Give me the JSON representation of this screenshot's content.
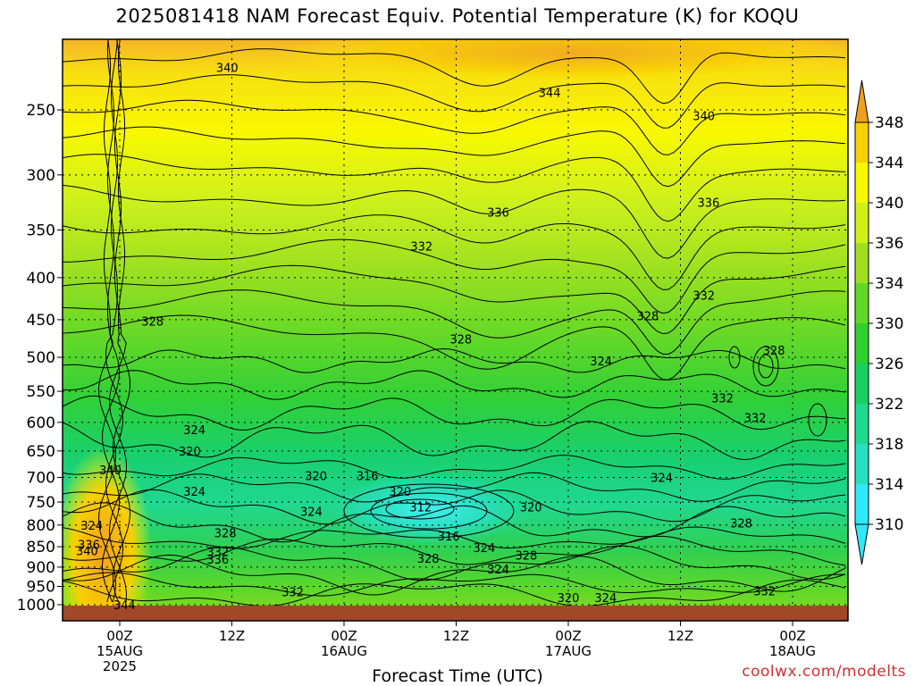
{
  "chart_data": {
    "type": "heatmap",
    "title": "2025081418 NAM Forecast Equiv. Potential Temperature (K) for KOQU",
    "xlabel": "Forecast Time (UTC)",
    "ylabel": "",
    "y_scale": "log",
    "y_reversed": true,
    "ylim": [
      1000,
      200
    ],
    "y_ticks": [
      250,
      300,
      350,
      400,
      450,
      500,
      550,
      600,
      650,
      700,
      750,
      800,
      850,
      900,
      950,
      1000
    ],
    "x_ticks": [
      {
        "line1": "00Z",
        "line2": "15AUG",
        "line3": "2025"
      },
      {
        "line1": "12Z",
        "line2": "",
        "line3": ""
      },
      {
        "line1": "00Z",
        "line2": "16AUG",
        "line3": ""
      },
      {
        "line1": "12Z",
        "line2": "",
        "line3": ""
      },
      {
        "line1": "00Z",
        "line2": "17AUG",
        "line3": ""
      },
      {
        "line1": "12Z",
        "line2": "",
        "line3": ""
      },
      {
        "line1": "00Z",
        "line2": "18AUG",
        "line3": ""
      }
    ],
    "colorbar": {
      "levels": [
        310,
        314,
        318,
        322,
        326,
        330,
        334,
        336,
        340,
        344,
        348
      ],
      "colors": [
        "#30e8f8",
        "#28e0c0",
        "#20d890",
        "#18d060",
        "#30d030",
        "#60d828",
        "#a0e020",
        "#d0f018",
        "#f8f800",
        "#f8d000",
        "#f0a020"
      ]
    },
    "grid": true,
    "contour_labels": [
      {
        "text": "340",
        "hour": -3.5,
        "p": 860
      },
      {
        "text": "336",
        "hour": -3.3,
        "p": 845
      },
      {
        "text": "324",
        "hour": -3.0,
        "p": 800
      },
      {
        "text": "340",
        "hour": -1.0,
        "p": 685
      },
      {
        "text": "344",
        "hour": 0.5,
        "p": 1000
      },
      {
        "text": "340",
        "hour": 11.5,
        "p": 222
      },
      {
        "text": "328",
        "hour": 3.5,
        "p": 452
      },
      {
        "text": "324",
        "hour": 8.0,
        "p": 612
      },
      {
        "text": "320",
        "hour": 7.5,
        "p": 650
      },
      {
        "text": "324",
        "hour": 8.0,
        "p": 728
      },
      {
        "text": "328",
        "hour": 11.3,
        "p": 818
      },
      {
        "text": "332",
        "hour": 10.5,
        "p": 862
      },
      {
        "text": "336",
        "hour": 10.5,
        "p": 880
      },
      {
        "text": "332",
        "hour": 18.5,
        "p": 964
      },
      {
        "text": "320",
        "hour": 21.0,
        "p": 697
      },
      {
        "text": "316",
        "hour": 26.5,
        "p": 697
      },
      {
        "text": "320",
        "hour": 30.0,
        "p": 728
      },
      {
        "text": "312",
        "hour": 32.2,
        "p": 760
      },
      {
        "text": "324",
        "hour": 20.5,
        "p": 770
      },
      {
        "text": "316",
        "hour": 35.2,
        "p": 825
      },
      {
        "text": "328",
        "hour": 33.0,
        "p": 878
      },
      {
        "text": "324",
        "hour": 39.0,
        "p": 852
      },
      {
        "text": "324",
        "hour": 40.5,
        "p": 905
      },
      {
        "text": "328",
        "hour": 43.5,
        "p": 870
      },
      {
        "text": "320",
        "hour": 44.0,
        "p": 760
      },
      {
        "text": "320",
        "hour": 48.0,
        "p": 980
      },
      {
        "text": "324",
        "hour": 52.0,
        "p": 980
      },
      {
        "text": "328",
        "hour": 36.5,
        "p": 475
      },
      {
        "text": "332",
        "hour": 32.3,
        "p": 366
      },
      {
        "text": "336",
        "hour": 40.5,
        "p": 333
      },
      {
        "text": "344",
        "hour": 46.0,
        "p": 238
      },
      {
        "text": "340",
        "hour": 62.5,
        "p": 254
      },
      {
        "text": "336",
        "hour": 63.0,
        "p": 324
      },
      {
        "text": "332",
        "hour": 62.5,
        "p": 420
      },
      {
        "text": "328",
        "hour": 56.5,
        "p": 445
      },
      {
        "text": "324",
        "hour": 51.5,
        "p": 505
      },
      {
        "text": "324",
        "hour": 58.0,
        "p": 700
      },
      {
        "text": "332",
        "hour": 64.5,
        "p": 560
      },
      {
        "text": "332",
        "hour": 68.0,
        "p": 592
      },
      {
        "text": "328",
        "hour": 70.0,
        "p": 490
      },
      {
        "text": "328",
        "hour": 66.5,
        "p": 795
      },
      {
        "text": "332",
        "hour": 69.0,
        "p": 962
      }
    ],
    "ground_color": "#a04828"
  },
  "footer": "coolwx.com/modelts"
}
